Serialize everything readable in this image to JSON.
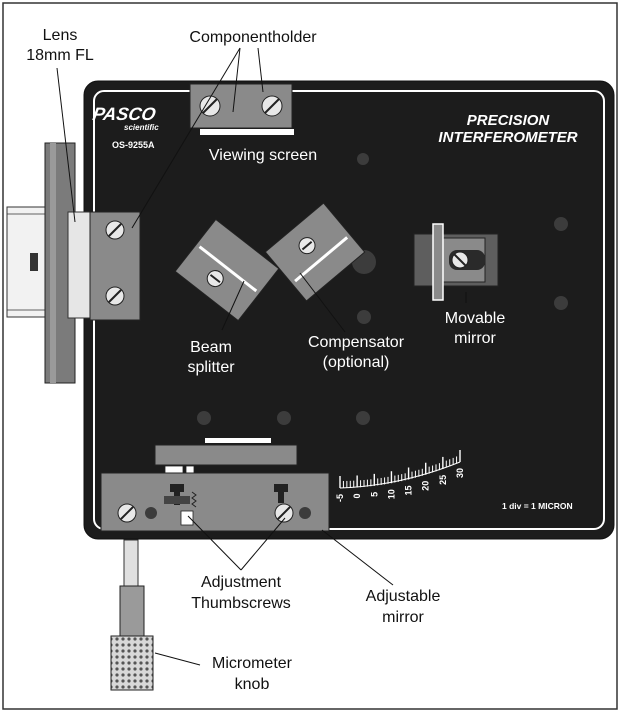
{
  "labels": {
    "lens_line1": "Lens",
    "lens_line2": "18mm FL",
    "component_holder": "Componentholder",
    "viewing_screen": "Viewing screen",
    "beam_line1": "Beam",
    "beam_line2": "splitter",
    "compensator_line1": "Compensator",
    "compensator_line2": "(optional)",
    "movable_line1": "Movable",
    "movable_line2": "mirror",
    "adjustment_line1": "Adjustment",
    "adjustment_line2": "Thumbscrews",
    "adjustable_line1": "Adjustable",
    "adjustable_line2": "mirror",
    "micrometer_line1": "Micrometer",
    "micrometer_line2": "knob"
  },
  "panel": {
    "brand": "PASCO",
    "brand_sub": "scientific",
    "model": "OS-9255A",
    "title_line1": "PRECISION",
    "title_line2": "INTERFEROMETER",
    "scale_note": "1 div = 1 MICRON"
  },
  "scale": {
    "ticks": [
      "-5",
      "0",
      "5",
      "10",
      "15",
      "20",
      "25",
      "30"
    ]
  },
  "colors": {
    "panel": "#1c1c1c",
    "component": "#8a8a8a",
    "dark_component": "#5e5e5e",
    "hole": "#3c3c3c"
  }
}
